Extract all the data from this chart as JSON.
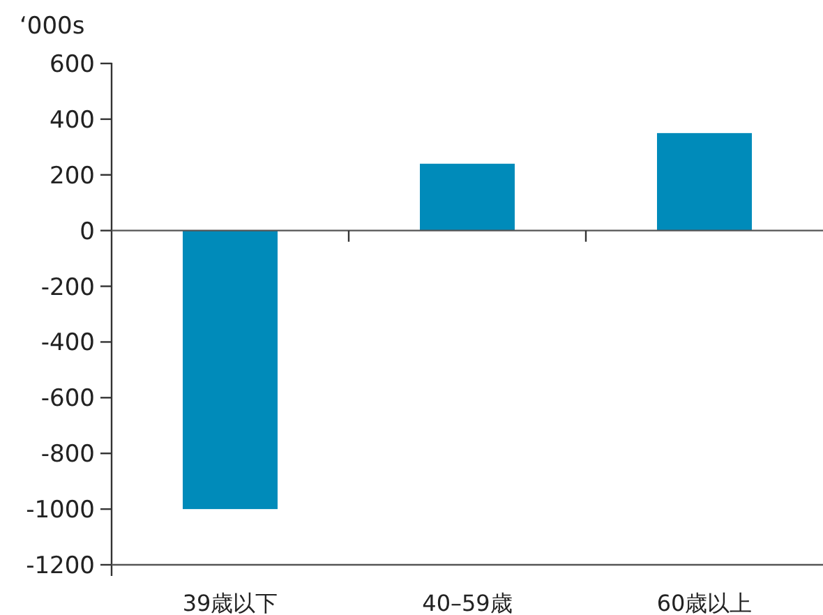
{
  "chart_data": {
    "type": "bar",
    "ylabel": "‘000s",
    "categories": [
      "39歳以下",
      "40–59歳",
      "60歳以上"
    ],
    "series": [
      {
        "color": "#008bba",
        "values": [
          -1000,
          240,
          350
        ]
      }
    ],
    "ylim": [
      -1200,
      600
    ],
    "yticks": [
      -1200,
      -1000,
      -800,
      -600,
      -400,
      -200,
      0,
      200,
      400,
      600
    ]
  }
}
